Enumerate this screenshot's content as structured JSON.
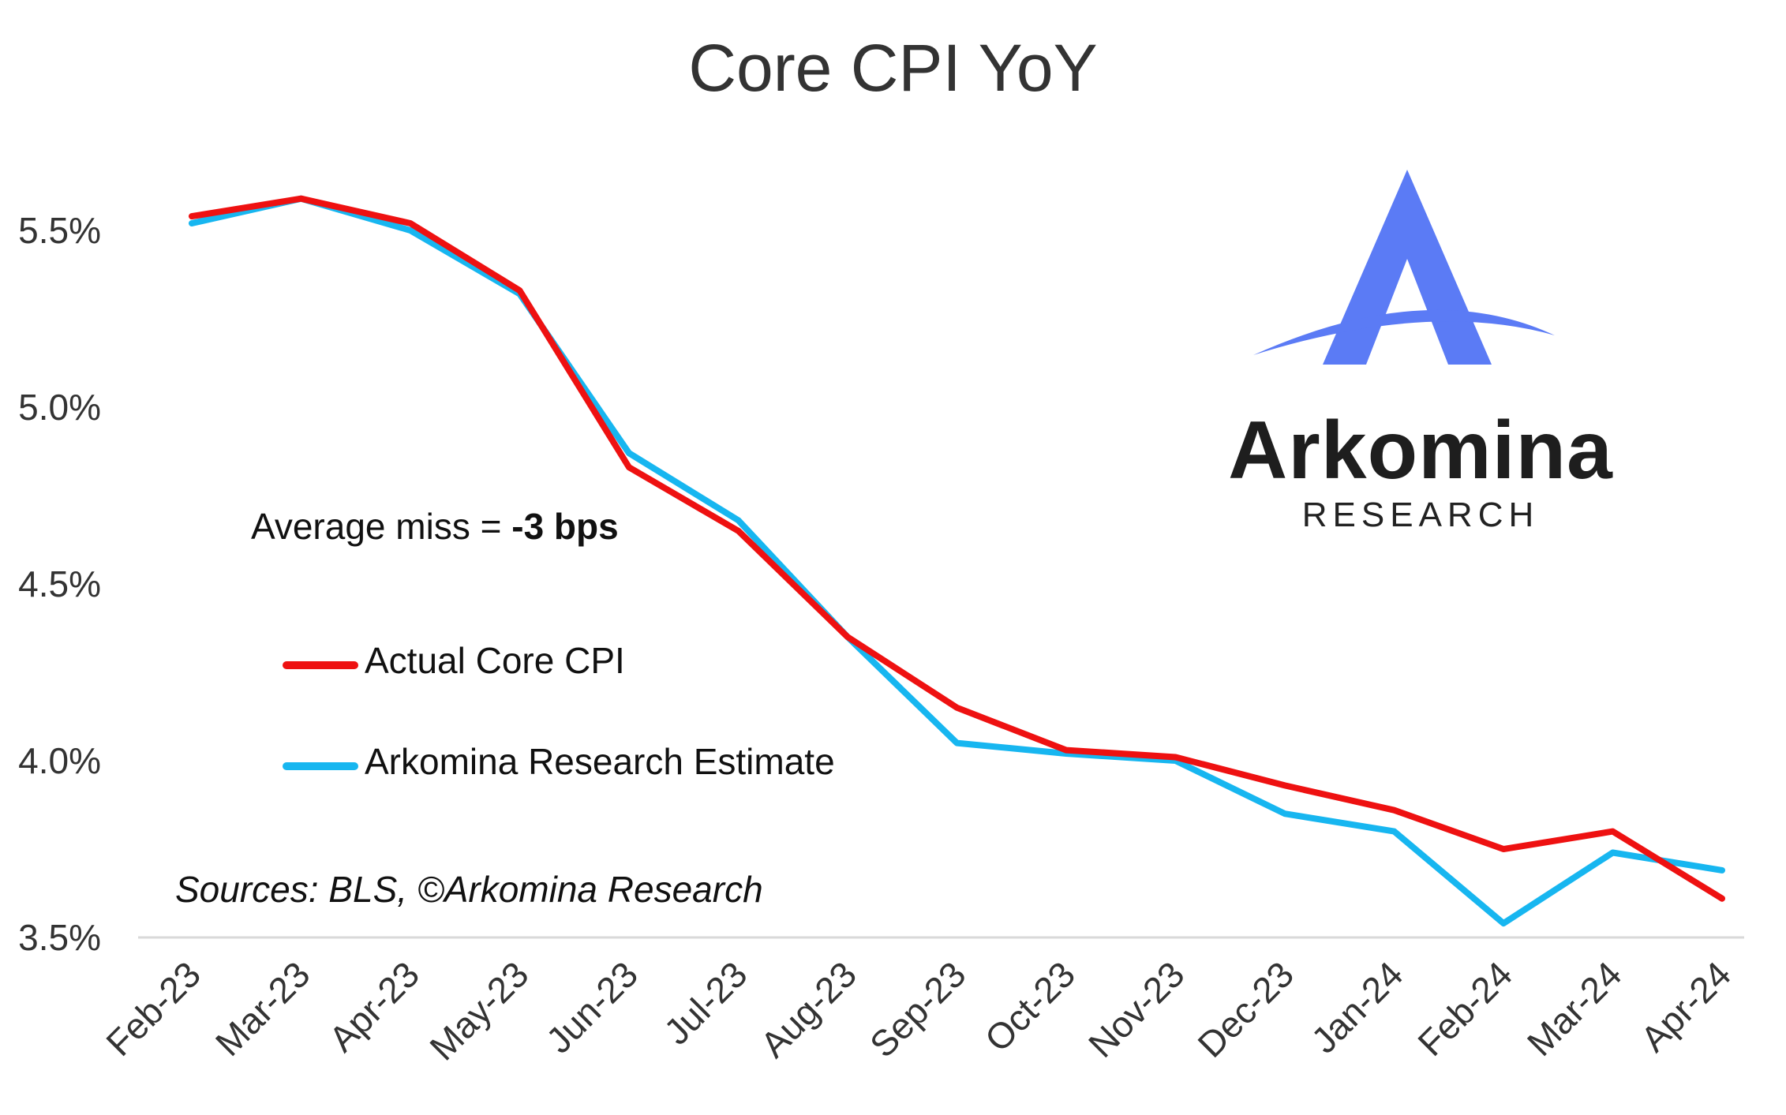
{
  "chart_data": {
    "type": "line",
    "title": "Core CPI YoY",
    "categories": [
      "Feb-23",
      "Mar-23",
      "Apr-23",
      "May-23",
      "Jun-23",
      "Jul-23",
      "Aug-23",
      "Sep-23",
      "Oct-23",
      "Nov-23",
      "Dec-23",
      "Jan-24",
      "Feb-24",
      "Mar-24",
      "Apr-24"
    ],
    "series": [
      {
        "name": "Actual Core CPI",
        "color": "#ee1111",
        "values": [
          5.54,
          5.59,
          5.52,
          5.33,
          4.83,
          4.65,
          4.35,
          4.15,
          4.03,
          4.01,
          3.93,
          3.86,
          3.75,
          3.8,
          3.61
        ]
      },
      {
        "name": "Arkomina Research Estimate",
        "color": "#17b6f0",
        "values": [
          5.52,
          5.59,
          5.5,
          5.32,
          4.87,
          4.68,
          4.35,
          4.05,
          4.02,
          4.0,
          3.85,
          3.8,
          3.54,
          3.74,
          3.69
        ]
      }
    ],
    "yticks": [
      "3.5%",
      "4.0%",
      "4.5%",
      "5.0%",
      "5.5%"
    ],
    "ytick_values": [
      3.5,
      4.0,
      4.5,
      5.0,
      5.5
    ],
    "ylim": [
      3.5,
      5.8
    ],
    "xlabel": "",
    "ylabel": "",
    "grid": false,
    "legend": "left",
    "axis_color": "#d9d9d9"
  },
  "annotation": {
    "text": "Average miss = ",
    "value": "-3 bps"
  },
  "source": "Sources: BLS, ©Arkomina Research",
  "logo": {
    "word": "Arkomina",
    "sub": "RESEARCH",
    "color": "#5b7bf5"
  }
}
